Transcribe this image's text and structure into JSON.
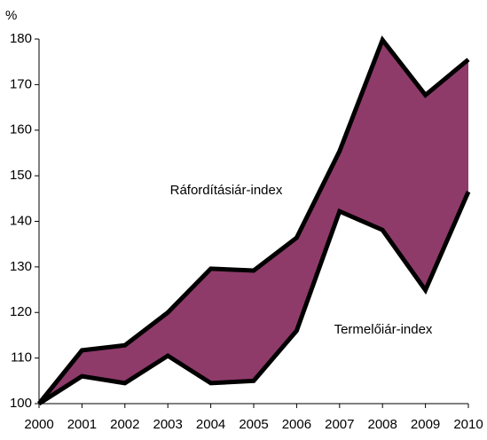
{
  "chart_data": {
    "type": "range_area",
    "y_axis_label": "%",
    "categories": [
      "2000",
      "2001",
      "2002",
      "2003",
      "2004",
      "2005",
      "2006",
      "2007",
      "2008",
      "2009",
      "2010"
    ],
    "series": [
      {
        "name": "Ráfordításiár-index",
        "color": "#000000",
        "values": [
          100,
          111.7,
          112.8,
          120,
          129.6,
          129.2,
          136.4,
          155.4,
          179.8,
          167.7,
          175.5
        ]
      },
      {
        "name": "Termelőiár-index",
        "color": "#000000",
        "values": [
          100,
          106,
          104.5,
          110.5,
          104.5,
          105,
          116,
          142.2,
          138.1,
          124.9,
          146.5
        ]
      }
    ],
    "fill_color": "#8e3b6a",
    "ylim": [
      100,
      180
    ],
    "yticks": [
      100,
      110,
      120,
      130,
      140,
      150,
      160,
      170,
      180
    ],
    "grid": false
  }
}
